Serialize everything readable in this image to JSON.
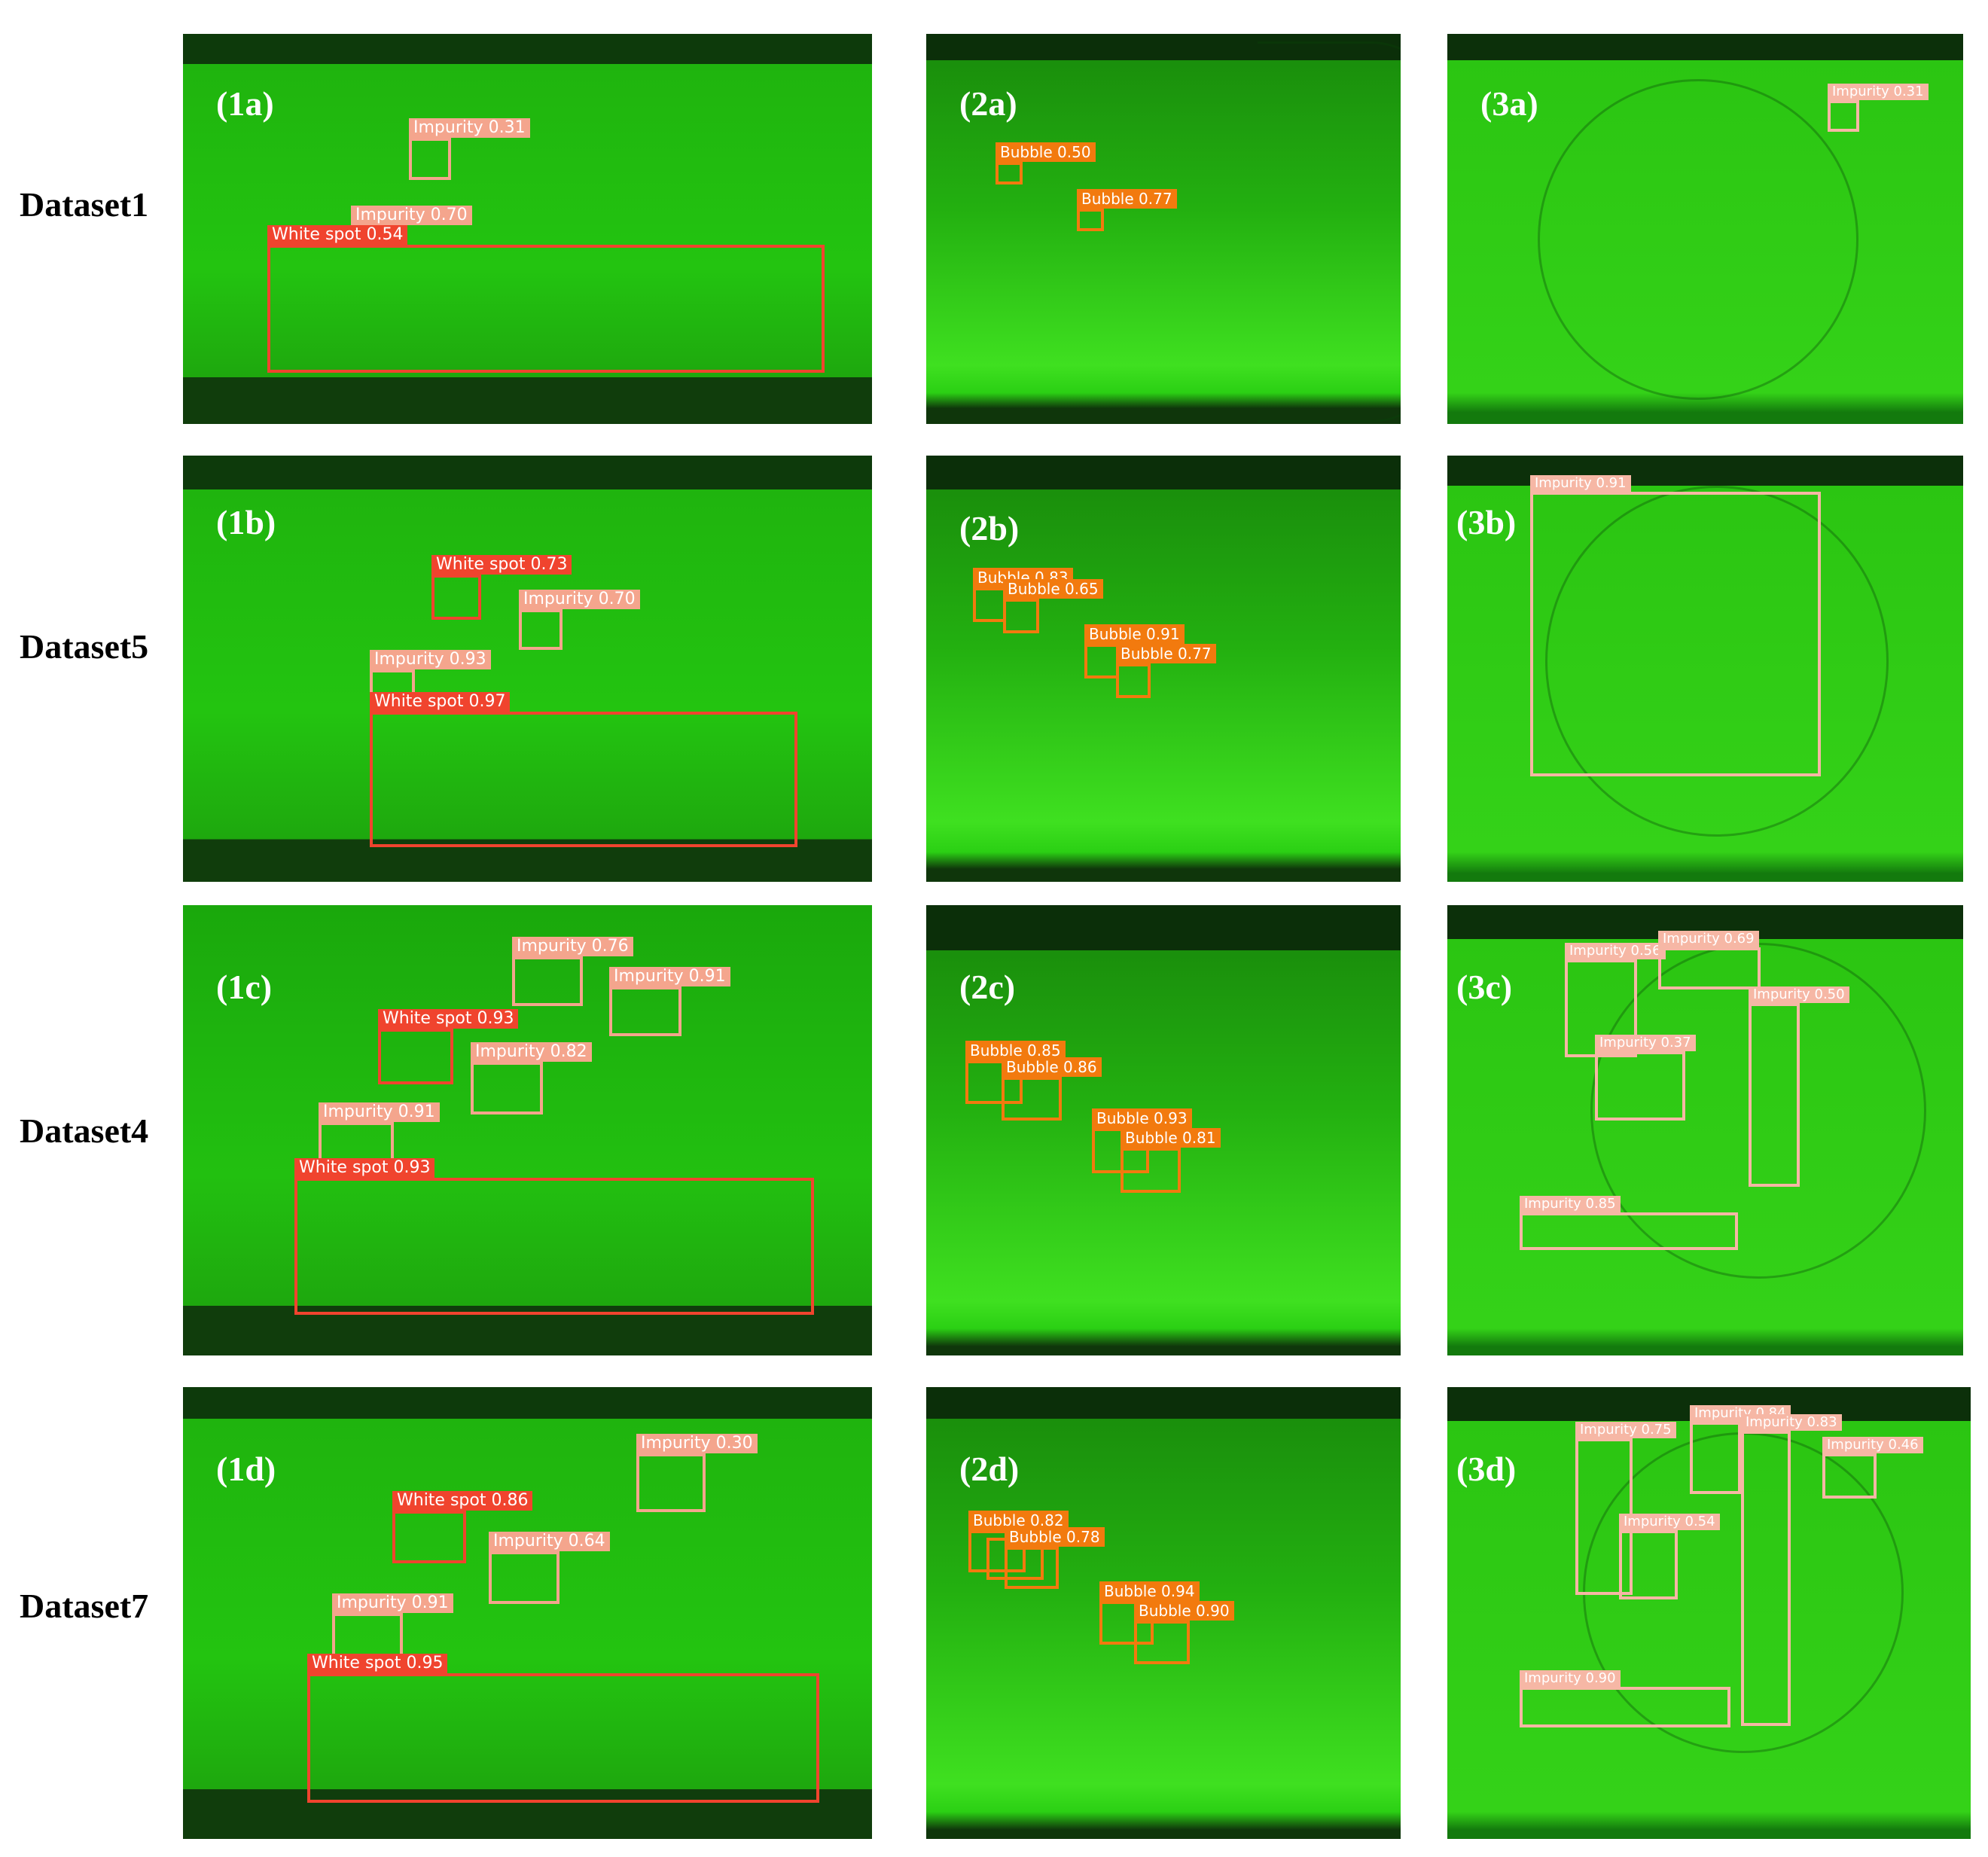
{
  "rows": [
    {
      "label": "Dataset1"
    },
    {
      "label": "Dataset5"
    },
    {
      "label": "Dataset4"
    },
    {
      "label": "Dataset7"
    }
  ],
  "panels": {
    "p1a": {
      "label": "(1a)",
      "detections": [
        {
          "cls": "Impurity",
          "score": "0.31",
          "text": "Impurity 0.31"
        },
        {
          "cls": "Impurity",
          "score": "0.70",
          "text": "Impurity 0.70"
        },
        {
          "cls": "White spot",
          "score": "0.54",
          "text": "White spot 0.54"
        }
      ]
    },
    "p2a": {
      "label": "(2a)",
      "detections": [
        {
          "cls": "Bubble",
          "score": "0.50",
          "text": "Bubble 0.50"
        },
        {
          "cls": "Bubble",
          "score": "0.77",
          "text": "Bubble 0.77"
        }
      ]
    },
    "p3a": {
      "label": "(3a)",
      "detections": [
        {
          "cls": "Impurity",
          "score": "0.31",
          "text": "Impurity 0.31"
        }
      ]
    },
    "p1b": {
      "label": "(1b)",
      "detections": [
        {
          "cls": "White spot",
          "score": "0.73",
          "text": "White spot 0.73"
        },
        {
          "cls": "Impurity",
          "score": "0.70",
          "text": "Impurity 0.70"
        },
        {
          "cls": "Impurity",
          "score": "0.93",
          "text": "Impurity 0.93"
        },
        {
          "cls": "White spot",
          "score": "0.97",
          "text": "White spot 0.97"
        }
      ]
    },
    "p2b": {
      "label": "(2b)",
      "detections": [
        {
          "cls": "Bubble",
          "score": "0.83",
          "text": "Bubble 0.83"
        },
        {
          "cls": "Bubble",
          "score": "0.65",
          "text": "Bubble 0.65"
        },
        {
          "cls": "Bubble",
          "score": "0.91",
          "text": "Bubble 0.91"
        },
        {
          "cls": "Bubble",
          "score": "0.77",
          "text": "Bubble 0.77"
        }
      ]
    },
    "p3b": {
      "label": "(3b)",
      "detections": [
        {
          "cls": "Impurity",
          "score": "0.91",
          "text": "Impurity 0.91"
        }
      ]
    },
    "p1c": {
      "label": "(1c)",
      "detections": [
        {
          "cls": "Impurity",
          "score": "0.76",
          "text": "Impurity 0.76"
        },
        {
          "cls": "Impurity",
          "score": "0.91",
          "text": "Impurity 0.91"
        },
        {
          "cls": "White spot",
          "score": "0.93",
          "text": "White spot 0.93"
        },
        {
          "cls": "Impurity",
          "score": "0.82",
          "text": "Impurity 0.82"
        },
        {
          "cls": "Impurity",
          "score": "0.91",
          "text": "Impurity 0.91"
        },
        {
          "cls": "White spot",
          "score": "0.93",
          "text": "White spot 0.93"
        }
      ]
    },
    "p2c": {
      "label": "(2c)",
      "detections": [
        {
          "cls": "Bubble",
          "score": "0.85",
          "text": "Bubble 0.85"
        },
        {
          "cls": "Bubble",
          "score": "0.86",
          "text": "Bubble 0.86"
        },
        {
          "cls": "Bubble",
          "score": "0.93",
          "text": "Bubble 0.93"
        },
        {
          "cls": "Bubble",
          "score": "0.81",
          "text": "Bubble 0.81"
        }
      ]
    },
    "p3c": {
      "label": "(3c)",
      "detections": [
        {
          "cls": "Impurity",
          "score": "0.69",
          "text": "Impurity 0.69"
        },
        {
          "cls": "Impurity",
          "score": "0.37",
          "text": "Impurity 0.37"
        },
        {
          "cls": "Impurity",
          "score": "0.50",
          "text": "Impurity 0.50"
        },
        {
          "cls": "Impurity",
          "score": "0.85",
          "text": "Impurity 0.85"
        }
      ]
    },
    "p1d": {
      "label": "(1d)",
      "detections": [
        {
          "cls": "Impurity",
          "score": "0.30",
          "text": "Impurity 0.30"
        },
        {
          "cls": "White spot",
          "score": "0.86",
          "text": "White spot 0.86"
        },
        {
          "cls": "Impurity",
          "score": "0.64",
          "text": "Impurity 0.64"
        },
        {
          "cls": "Impurity",
          "score": "0.91",
          "text": "Impurity 0.91"
        },
        {
          "cls": "White spot",
          "score": "0.95",
          "text": "White spot 0.95"
        }
      ]
    },
    "p2d": {
      "label": "(2d)",
      "detections": [
        {
          "cls": "Bubble",
          "score": "0.82",
          "text": "Bubble 0.82"
        },
        {
          "cls": "Bubble",
          "score": "0.78",
          "text": "Bubble 0.78"
        },
        {
          "cls": "Bubble",
          "score": "0.94",
          "text": "Bubble 0.94"
        },
        {
          "cls": "Bubble",
          "score": "0.90",
          "text": "Bubble 0.90"
        }
      ]
    },
    "p3d": {
      "label": "(3d)",
      "detections": [
        {
          "cls": "Impurity",
          "score": "0.75",
          "text": "Impurity 0.75"
        },
        {
          "cls": "Impurity",
          "score": "0.84",
          "text": "Impurity 0.84"
        },
        {
          "cls": "Impurity",
          "score": "0.83",
          "text": "Impurity 0.83"
        },
        {
          "cls": "Impurity",
          "score": "0.46",
          "text": "Impurity 0.46"
        },
        {
          "cls": "Impurity",
          "score": "0.54",
          "text": "Impurity 0.54"
        },
        {
          "cls": "Impurity",
          "score": "0.90",
          "text": "Impurity 0.90"
        }
      ]
    }
  },
  "colors": {
    "white_spot": "#f0442e",
    "impurity": "#f4a58d",
    "bubble": "#f27a0e",
    "panel_green": "#22c40f"
  }
}
